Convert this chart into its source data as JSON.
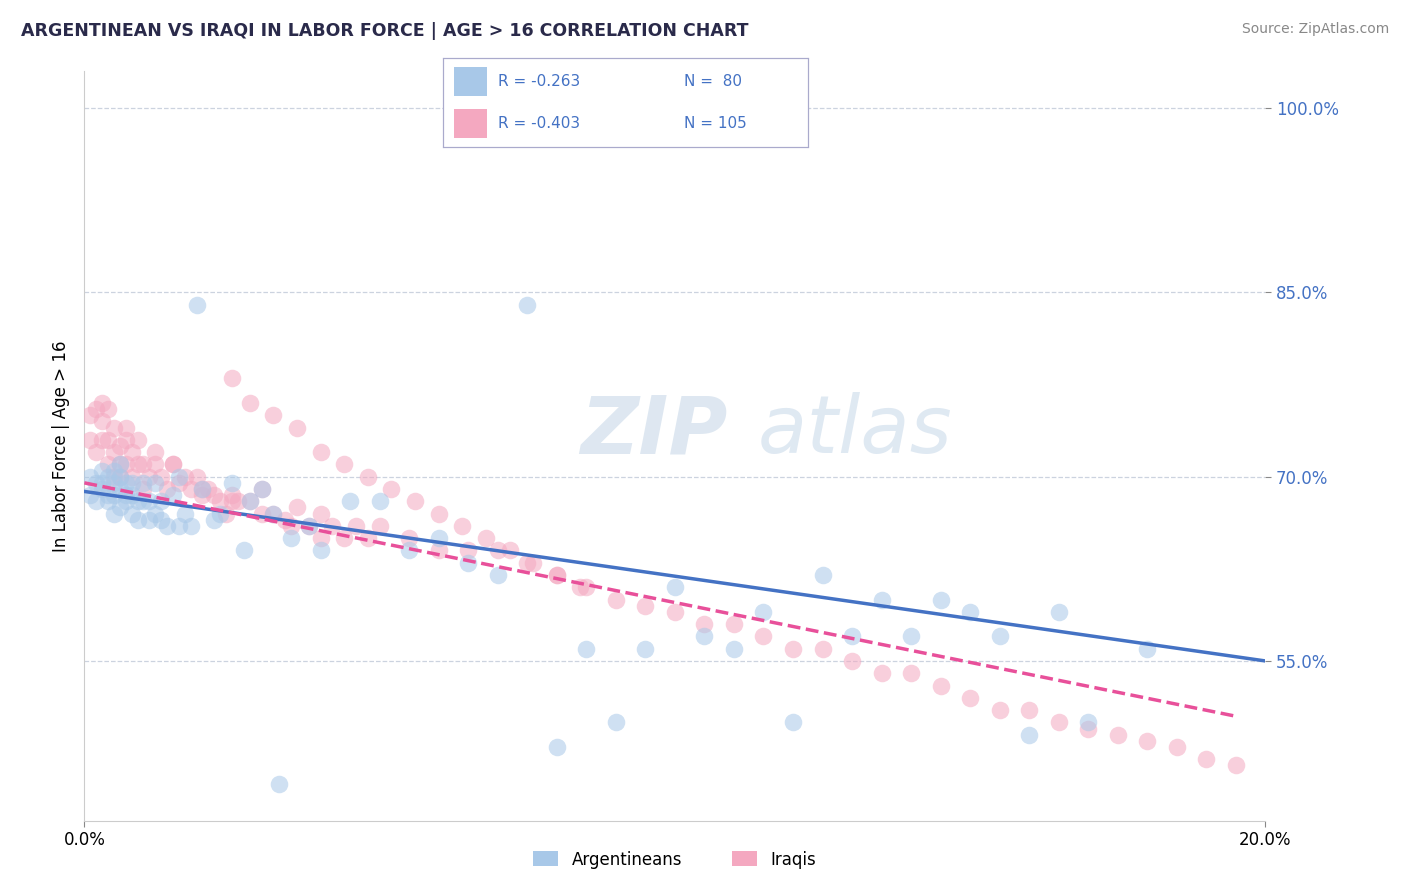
{
  "title": "ARGENTINEAN VS IRAQI IN LABOR FORCE | AGE > 16 CORRELATION CHART",
  "source": "Source: ZipAtlas.com",
  "ylabel": "In Labor Force | Age > 16",
  "legend_label1": "Argentineans",
  "legend_label2": "Iraqis",
  "color_argentinean": "#a8c8e8",
  "color_iraqi": "#f4a8c0",
  "color_line1": "#4472c4",
  "color_line2": "#e8509a",
  "color_legend_text": "#4472c4",
  "watermark_zip": "ZIP",
  "watermark_atlas": "atlas",
  "xmin": 0.0,
  "xmax": 0.2,
  "ymin": 0.42,
  "ymax": 1.03,
  "ytick_positions": [
    0.55,
    0.7,
    0.85,
    1.0
  ],
  "ytick_labels": [
    "55.0%",
    "70.0%",
    "85.0%",
    "100.0%"
  ],
  "trendline1_x": [
    0.0,
    0.2
  ],
  "trendline1_y": [
    0.688,
    0.55
  ],
  "trendline2_x": [
    0.0,
    0.195
  ],
  "trendline2_y": [
    0.695,
    0.505
  ],
  "scatter_argentinean_x": [
    0.001,
    0.001,
    0.002,
    0.002,
    0.003,
    0.003,
    0.003,
    0.004,
    0.004,
    0.004,
    0.005,
    0.005,
    0.005,
    0.005,
    0.006,
    0.006,
    0.006,
    0.006,
    0.007,
    0.007,
    0.007,
    0.008,
    0.008,
    0.008,
    0.009,
    0.009,
    0.01,
    0.01,
    0.011,
    0.011,
    0.012,
    0.012,
    0.013,
    0.013,
    0.014,
    0.015,
    0.016,
    0.017,
    0.018,
    0.02,
    0.022,
    0.025,
    0.028,
    0.03,
    0.032,
    0.035,
    0.038,
    0.04,
    0.045,
    0.05,
    0.055,
    0.06,
    0.065,
    0.07,
    0.075,
    0.08,
    0.085,
    0.09,
    0.095,
    0.1,
    0.105,
    0.11,
    0.115,
    0.12,
    0.125,
    0.13,
    0.135,
    0.14,
    0.145,
    0.15,
    0.155,
    0.16,
    0.165,
    0.17,
    0.18,
    0.016,
    0.019,
    0.023,
    0.027,
    0.033
  ],
  "scatter_argentinean_y": [
    0.685,
    0.7,
    0.695,
    0.68,
    0.695,
    0.69,
    0.705,
    0.68,
    0.7,
    0.685,
    0.67,
    0.685,
    0.695,
    0.705,
    0.675,
    0.69,
    0.7,
    0.71,
    0.68,
    0.695,
    0.685,
    0.67,
    0.685,
    0.695,
    0.665,
    0.68,
    0.68,
    0.695,
    0.68,
    0.665,
    0.695,
    0.67,
    0.68,
    0.665,
    0.66,
    0.685,
    0.7,
    0.67,
    0.66,
    0.69,
    0.665,
    0.695,
    0.68,
    0.69,
    0.67,
    0.65,
    0.66,
    0.64,
    0.68,
    0.68,
    0.64,
    0.65,
    0.63,
    0.62,
    0.84,
    0.48,
    0.56,
    0.5,
    0.56,
    0.61,
    0.57,
    0.56,
    0.59,
    0.5,
    0.62,
    0.57,
    0.6,
    0.57,
    0.6,
    0.59,
    0.57,
    0.49,
    0.59,
    0.5,
    0.56,
    0.66,
    0.84,
    0.67,
    0.64,
    0.45
  ],
  "scatter_iraqi_x": [
    0.001,
    0.001,
    0.002,
    0.002,
    0.003,
    0.003,
    0.003,
    0.004,
    0.004,
    0.004,
    0.005,
    0.005,
    0.005,
    0.006,
    0.006,
    0.006,
    0.007,
    0.007,
    0.007,
    0.008,
    0.008,
    0.009,
    0.009,
    0.01,
    0.01,
    0.011,
    0.012,
    0.012,
    0.013,
    0.014,
    0.015,
    0.016,
    0.017,
    0.018,
    0.019,
    0.02,
    0.021,
    0.022,
    0.023,
    0.024,
    0.025,
    0.026,
    0.028,
    0.03,
    0.032,
    0.034,
    0.036,
    0.038,
    0.04,
    0.042,
    0.044,
    0.046,
    0.048,
    0.05,
    0.055,
    0.06,
    0.065,
    0.07,
    0.075,
    0.08,
    0.085,
    0.09,
    0.095,
    0.1,
    0.105,
    0.11,
    0.115,
    0.12,
    0.125,
    0.13,
    0.135,
    0.14,
    0.145,
    0.15,
    0.155,
    0.16,
    0.165,
    0.17,
    0.175,
    0.18,
    0.185,
    0.19,
    0.195,
    0.015,
    0.02,
    0.025,
    0.03,
    0.035,
    0.04,
    0.025,
    0.028,
    0.032,
    0.036,
    0.04,
    0.044,
    0.048,
    0.052,
    0.056,
    0.06,
    0.064,
    0.068,
    0.072,
    0.076,
    0.08,
    0.084
  ],
  "scatter_iraqi_y": [
    0.73,
    0.75,
    0.755,
    0.72,
    0.76,
    0.73,
    0.745,
    0.71,
    0.755,
    0.73,
    0.74,
    0.7,
    0.72,
    0.7,
    0.725,
    0.71,
    0.73,
    0.71,
    0.74,
    0.72,
    0.7,
    0.71,
    0.73,
    0.69,
    0.71,
    0.7,
    0.71,
    0.72,
    0.7,
    0.69,
    0.71,
    0.695,
    0.7,
    0.69,
    0.7,
    0.685,
    0.69,
    0.685,
    0.68,
    0.67,
    0.685,
    0.68,
    0.68,
    0.69,
    0.67,
    0.665,
    0.675,
    0.66,
    0.67,
    0.66,
    0.65,
    0.66,
    0.65,
    0.66,
    0.65,
    0.64,
    0.64,
    0.64,
    0.63,
    0.62,
    0.61,
    0.6,
    0.595,
    0.59,
    0.58,
    0.58,
    0.57,
    0.56,
    0.56,
    0.55,
    0.54,
    0.54,
    0.53,
    0.52,
    0.51,
    0.51,
    0.5,
    0.495,
    0.49,
    0.485,
    0.48,
    0.47,
    0.465,
    0.71,
    0.69,
    0.68,
    0.67,
    0.66,
    0.65,
    0.78,
    0.76,
    0.75,
    0.74,
    0.72,
    0.71,
    0.7,
    0.69,
    0.68,
    0.67,
    0.66,
    0.65,
    0.64,
    0.63,
    0.62,
    0.61
  ]
}
